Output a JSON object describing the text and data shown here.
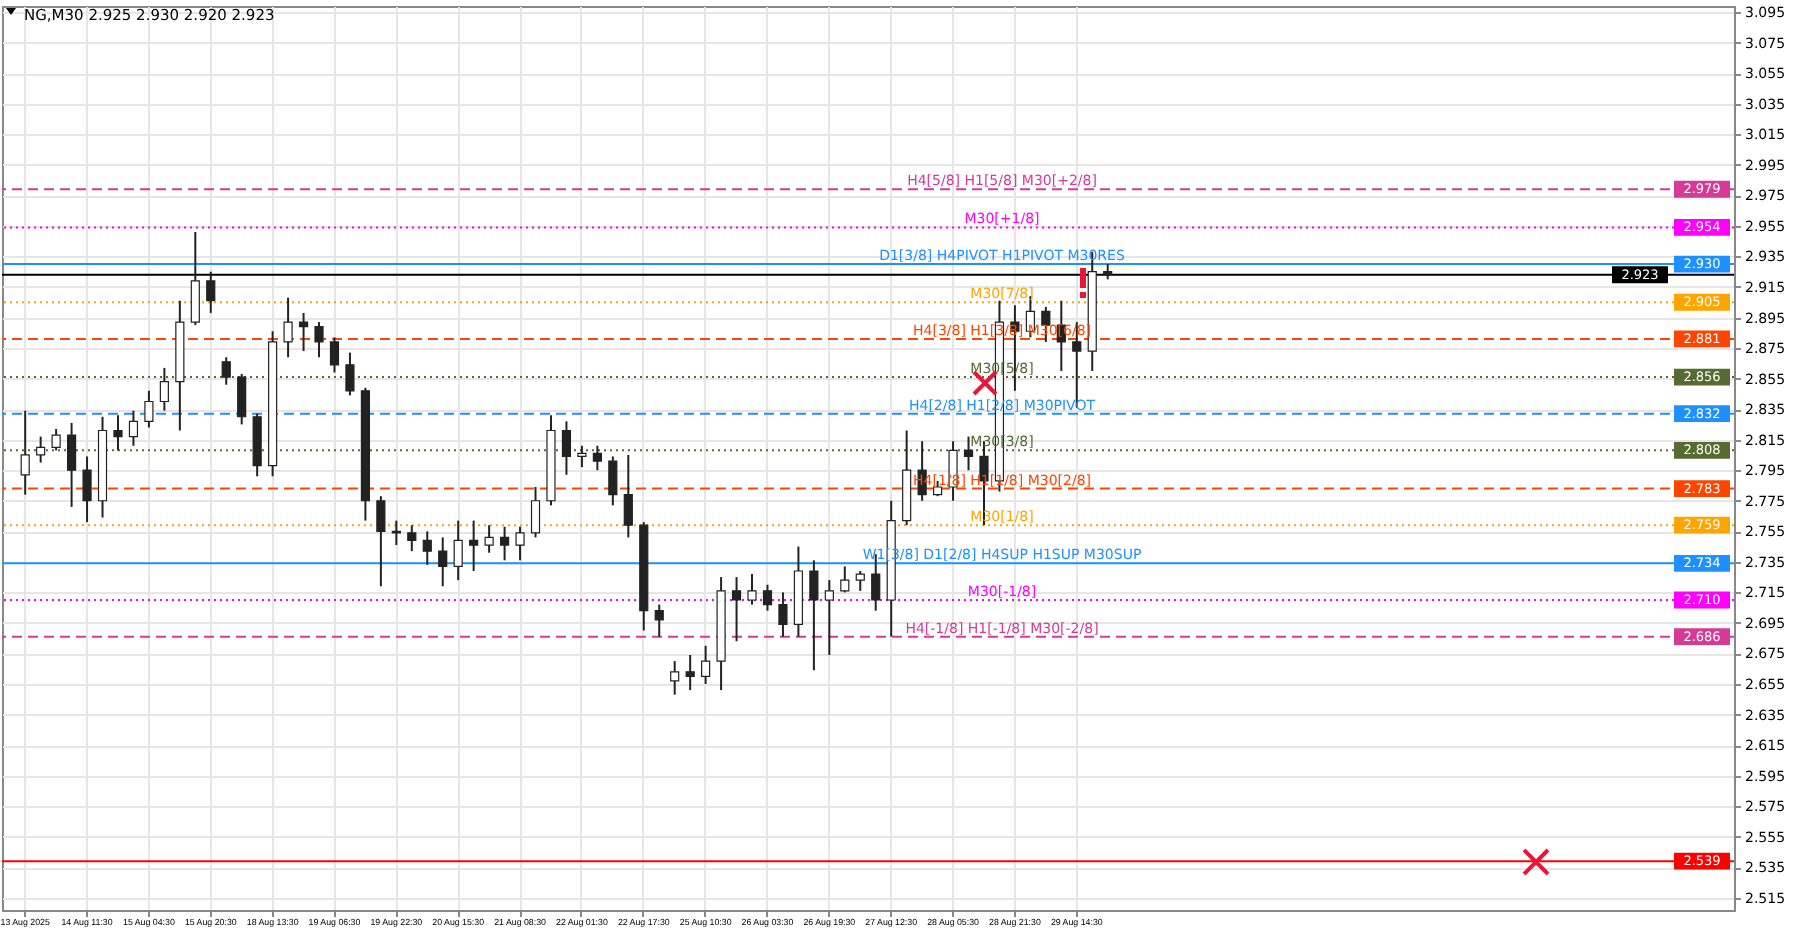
{
  "chart_data": {
    "type": "candlestick",
    "title": "NG,M30  2.925 2.930 2.920 2.923",
    "categories": [
      "13 Aug 2025",
      null,
      null,
      null,
      "14 Aug 11:30",
      null,
      null,
      null,
      "15 Aug 04:30",
      null,
      null,
      null,
      "15 Aug 20:30",
      null,
      null,
      null,
      "18 Aug 13:30",
      null,
      null,
      null,
      "19 Aug 06:30",
      null,
      null,
      null,
      "19 Aug 22:30",
      null,
      null,
      null,
      "20 Aug 15:30",
      null,
      null,
      null,
      "21 Aug 08:30",
      null,
      null,
      null,
      "22 Aug 01:30",
      null,
      null,
      null,
      "22 Aug 17:30",
      null,
      null,
      null,
      "25 Aug 10:30",
      null,
      null,
      null,
      "26 Aug 03:30",
      null,
      null,
      null,
      "26 Aug 19:30",
      null,
      null,
      null,
      "27 Aug 12:30",
      null,
      null,
      null,
      "28 Aug 05:30",
      null,
      null,
      null,
      "28 Aug 21:30",
      null,
      null,
      null,
      "29 Aug 14:30",
      null,
      null,
      null,
      null,
      null,
      null,
      null,
      null,
      null,
      null,
      null,
      null,
      null,
      null,
      null,
      null,
      null,
      null,
      null,
      null,
      null,
      null,
      null,
      null,
      null,
      null,
      null,
      null,
      null,
      null,
      null,
      null,
      null,
      null,
      null,
      null,
      null,
      null,
      null,
      null,
      null
    ],
    "ohlc": [
      [
        2.792,
        2.834,
        2.779,
        2.805
      ],
      [
        2.805,
        2.817,
        2.8,
        2.81
      ],
      [
        2.81,
        2.822,
        2.808,
        2.818
      ],
      [
        2.818,
        2.826,
        2.771,
        2.795
      ],
      [
        2.795,
        2.804,
        2.761,
        2.775
      ],
      [
        2.775,
        2.83,
        2.764,
        2.821
      ],
      [
        2.821,
        2.831,
        2.808,
        2.817
      ],
      [
        2.817,
        2.834,
        2.811,
        2.827
      ],
      [
        2.827,
        2.847,
        2.823,
        2.84
      ],
      [
        2.84,
        2.862,
        2.834,
        2.853
      ],
      [
        2.853,
        2.906,
        2.821,
        2.892
      ],
      [
        2.892,
        2.951,
        2.89,
        2.919
      ],
      [
        2.919,
        2.925,
        2.898,
        2.906
      ],
      [
        2.866,
        2.869,
        2.851,
        2.856
      ],
      [
        2.856,
        2.858,
        2.825,
        2.83
      ],
      [
        2.83,
        2.832,
        2.791,
        2.798
      ],
      [
        2.798,
        2.886,
        2.791,
        2.879
      ],
      [
        2.879,
        2.908,
        2.869,
        2.892
      ],
      [
        2.892,
        2.898,
        2.873,
        2.889
      ],
      [
        2.889,
        2.892,
        2.869,
        2.879
      ],
      [
        2.879,
        2.882,
        2.859,
        2.864
      ],
      [
        2.864,
        2.872,
        2.844,
        2.847
      ],
      [
        2.847,
        2.849,
        2.762,
        2.775
      ],
      [
        2.775,
        2.778,
        2.719,
        2.755
      ],
      [
        2.755,
        2.762,
        2.746,
        2.754
      ],
      [
        2.754,
        2.759,
        2.742,
        2.749
      ],
      [
        2.749,
        2.755,
        2.733,
        2.742
      ],
      [
        2.742,
        2.751,
        2.719,
        2.732
      ],
      [
        2.732,
        2.762,
        2.723,
        2.749
      ],
      [
        2.749,
        2.762,
        2.729,
        2.746
      ],
      [
        2.746,
        2.759,
        2.741,
        2.751
      ],
      [
        2.751,
        2.758,
        2.736,
        2.746
      ],
      [
        2.746,
        2.758,
        2.736,
        2.754
      ],
      [
        2.754,
        2.784,
        2.751,
        2.775
      ],
      [
        2.775,
        2.831,
        2.772,
        2.821
      ],
      [
        2.821,
        2.827,
        2.792,
        2.804
      ],
      [
        2.804,
        2.811,
        2.797,
        2.806
      ],
      [
        2.806,
        2.811,
        2.795,
        2.801
      ],
      [
        2.801,
        2.804,
        2.772,
        2.779
      ],
      [
        2.779,
        2.805,
        2.751,
        2.759
      ],
      [
        2.759,
        2.761,
        2.69,
        2.703
      ],
      [
        2.703,
        2.707,
        2.686,
        2.697
      ],
      [
        2.657,
        2.67,
        2.648,
        2.663
      ],
      [
        2.663,
        2.674,
        2.651,
        2.66
      ],
      [
        2.66,
        2.68,
        2.655,
        2.67
      ],
      [
        2.67,
        2.725,
        2.651,
        2.716
      ],
      [
        2.716,
        2.725,
        2.683,
        2.71
      ],
      [
        2.71,
        2.727,
        2.707,
        2.716
      ],
      [
        2.716,
        2.72,
        2.703,
        2.707
      ],
      [
        2.707,
        2.715,
        2.686,
        2.694
      ],
      [
        2.694,
        2.745,
        2.686,
        2.729
      ],
      [
        2.729,
        2.736,
        2.664,
        2.71
      ],
      [
        2.71,
        2.723,
        2.674,
        2.716
      ],
      [
        2.716,
        2.732,
        2.715,
        2.723
      ],
      [
        2.723,
        2.729,
        2.716,
        2.727
      ],
      [
        2.727,
        2.74,
        2.703,
        2.71
      ],
      [
        2.71,
        2.775,
        2.686,
        2.762
      ],
      [
        2.762,
        2.821,
        2.759,
        2.795
      ],
      [
        2.795,
        2.814,
        2.775,
        2.779
      ],
      [
        2.779,
        2.788,
        2.778,
        2.784
      ],
      [
        2.784,
        2.814,
        2.775,
        2.808
      ],
      [
        2.808,
        2.817,
        2.795,
        2.804
      ],
      [
        2.804,
        2.814,
        2.759,
        2.788
      ],
      [
        2.788,
        2.906,
        2.781,
        2.892
      ],
      [
        2.892,
        2.903,
        2.847,
        2.886
      ],
      [
        2.886,
        2.909,
        2.882,
        2.899
      ],
      [
        2.899,
        2.902,
        2.879,
        2.89
      ],
      [
        2.89,
        2.906,
        2.86,
        2.879
      ],
      [
        2.879,
        2.892,
        2.836,
        2.873
      ],
      [
        2.873,
        2.938,
        2.86,
        2.925
      ],
      [
        2.925,
        2.93,
        2.92,
        2.923
      ],
      null,
      null,
      null,
      null,
      null,
      null,
      null,
      null,
      null,
      null,
      null,
      null,
      null,
      null,
      null,
      null,
      null,
      null,
      null,
      null,
      null,
      null,
      null,
      null,
      null,
      null,
      null,
      null,
      null,
      null,
      null,
      null,
      null,
      null,
      null,
      null,
      null,
      null,
      null
    ],
    "ylim": [
      2.507,
      3.099
    ],
    "yticks": [
      2.515,
      2.535,
      2.555,
      2.575,
      2.595,
      2.615,
      2.635,
      2.655,
      2.675,
      2.695,
      2.715,
      2.735,
      2.755,
      2.775,
      2.795,
      2.815,
      2.835,
      2.855,
      2.875,
      2.895,
      2.915,
      2.935,
      2.955,
      2.975,
      2.995,
      3.015,
      3.035,
      3.055,
      3.075,
      3.095
    ],
    "grid": true,
    "annotations": [
      {
        "text": "2.979",
        "y": 2.979
      },
      {
        "text": "2.954",
        "y": 2.954
      },
      {
        "text": "2.930",
        "y": 2.93
      },
      {
        "text": "2.923",
        "y": 2.923
      },
      {
        "text": "2.905",
        "y": 2.905
      },
      {
        "text": "2.881",
        "y": 2.881
      },
      {
        "text": "2.856",
        "y": 2.856
      },
      {
        "text": "2.832",
        "y": 2.832
      },
      {
        "text": "2.808",
        "y": 2.808
      },
      {
        "text": "2.783",
        "y": 2.783
      },
      {
        "text": "2.759",
        "y": 2.759
      },
      {
        "text": "2.734",
        "y": 2.734
      },
      {
        "text": "2.710",
        "y": 2.71
      },
      {
        "text": "2.686",
        "y": 2.686
      },
      {
        "text": "2.539",
        "y": 2.539
      }
    ],
    "ref_lines": [
      {
        "axis": "y",
        "value": 2.979,
        "label": "H4[5/8] H1[5/8] M30[+2/8]",
        "color": "#d63a96",
        "line_style": "dashed"
      },
      {
        "axis": "y",
        "value": 2.954,
        "label": "M30[+1/8]",
        "color": "#ff00ff",
        "line_style": "dotted"
      },
      {
        "axis": "y",
        "value": 2.93,
        "label": "D1[3/8] H4PIVOT H1PIVOT M30RES",
        "color": "#1e90ff",
        "line_style": "solid"
      },
      {
        "axis": "y",
        "value": 2.923,
        "label": null,
        "color": "#000000",
        "line_style": "solid"
      },
      {
        "axis": "y",
        "value": 2.905,
        "label": "M30[7/8]",
        "color": "#ffa500",
        "line_style": "dotted"
      },
      {
        "axis": "y",
        "value": 2.881,
        "label": "H4[3/8] H1[3/8] M30[6/8]",
        "color": "#ff4500",
        "line_style": "dashed"
      },
      {
        "axis": "y",
        "value": 2.856,
        "label": "M30[5/8]",
        "color": "#556b2f",
        "line_style": "dotted"
      },
      {
        "axis": "y",
        "value": 2.832,
        "label": "H4[2/8] H1[2/8] M30PIVOT",
        "color": "#1e90ff",
        "line_style": "dashed"
      },
      {
        "axis": "y",
        "value": 2.808,
        "label": "M30[3/8]",
        "color": "#556b2f",
        "line_style": "dotted"
      },
      {
        "axis": "y",
        "value": 2.783,
        "label": "H4[1/8] H1[1/8] M30[2/8]",
        "color": "#ff4500",
        "line_style": "dashed"
      },
      {
        "axis": "y",
        "value": 2.759,
        "label": "M30[1/8]",
        "color": "#ffa500",
        "line_style": "dotted"
      },
      {
        "axis": "y",
        "value": 2.734,
        "label": "W1[3/8] D1[2/8] H4SUP H1SUP M30SUP",
        "color": "#1e90ff",
        "line_style": "solid"
      },
      {
        "axis": "y",
        "value": 2.71,
        "label": "M30[-1/8]",
        "color": "#ff00ff",
        "line_style": "dotted"
      },
      {
        "axis": "y",
        "value": 2.686,
        "label": "H4[-1/8] H1[-1/8] M30[-2/8]",
        "color": "#d63a96",
        "line_style": "dashed"
      },
      {
        "axis": "y",
        "value": 2.539,
        "label": null,
        "color": "#ff0000",
        "line_style": "solid"
      }
    ]
  }
}
